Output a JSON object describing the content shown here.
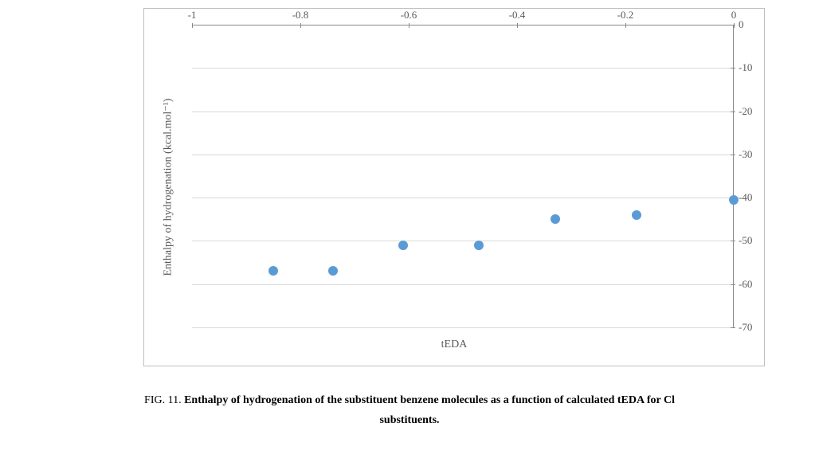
{
  "chart": {
    "type": "scatter",
    "x_axis_title": "tEDA",
    "y_axis_title": "Enthalpy of hydrogenation (kcal.mol⁻¹)",
    "xlim": [
      -1,
      0
    ],
    "ylim": [
      -70,
      0
    ],
    "xtick_step": 0.2,
    "ytick_step": 10,
    "xticks": [
      -1,
      -0.8,
      -0.6,
      -0.4,
      -0.2,
      0
    ],
    "yticks": [
      0,
      -10,
      -20,
      -30,
      -40,
      -50,
      -60,
      -70
    ],
    "xtick_labels": [
      "-1",
      "-0.8",
      "-0.6",
      "-0.4",
      "-0.2",
      "0"
    ],
    "ytick_labels": [
      "0",
      "-10",
      "-20",
      "-30",
      "-40",
      "-50",
      "-60",
      "-70"
    ],
    "background_color": "#ffffff",
    "border_color": "#bfbfbf",
    "grid_color": "#d9d9d9",
    "axis_color": "#888888",
    "label_color": "#595959",
    "label_fontsize": 13,
    "axis_title_fontsize": 14,
    "marker_color": "#5b9bd5",
    "marker_size": 12,
    "points": [
      {
        "x": -0.85,
        "y": -57
      },
      {
        "x": -0.74,
        "y": -57
      },
      {
        "x": -0.61,
        "y": -51
      },
      {
        "x": -0.47,
        "y": -51
      },
      {
        "x": -0.33,
        "y": -45
      },
      {
        "x": -0.18,
        "y": -44
      },
      {
        "x": 0.0,
        "y": -40.5
      }
    ]
  },
  "caption": {
    "prefix": "FIG. 11. ",
    "line1": "Enthalpy of hydrogenation of the substituent benzene molecules as a function of calculated tEDA for Cl",
    "line2": "substituents."
  }
}
